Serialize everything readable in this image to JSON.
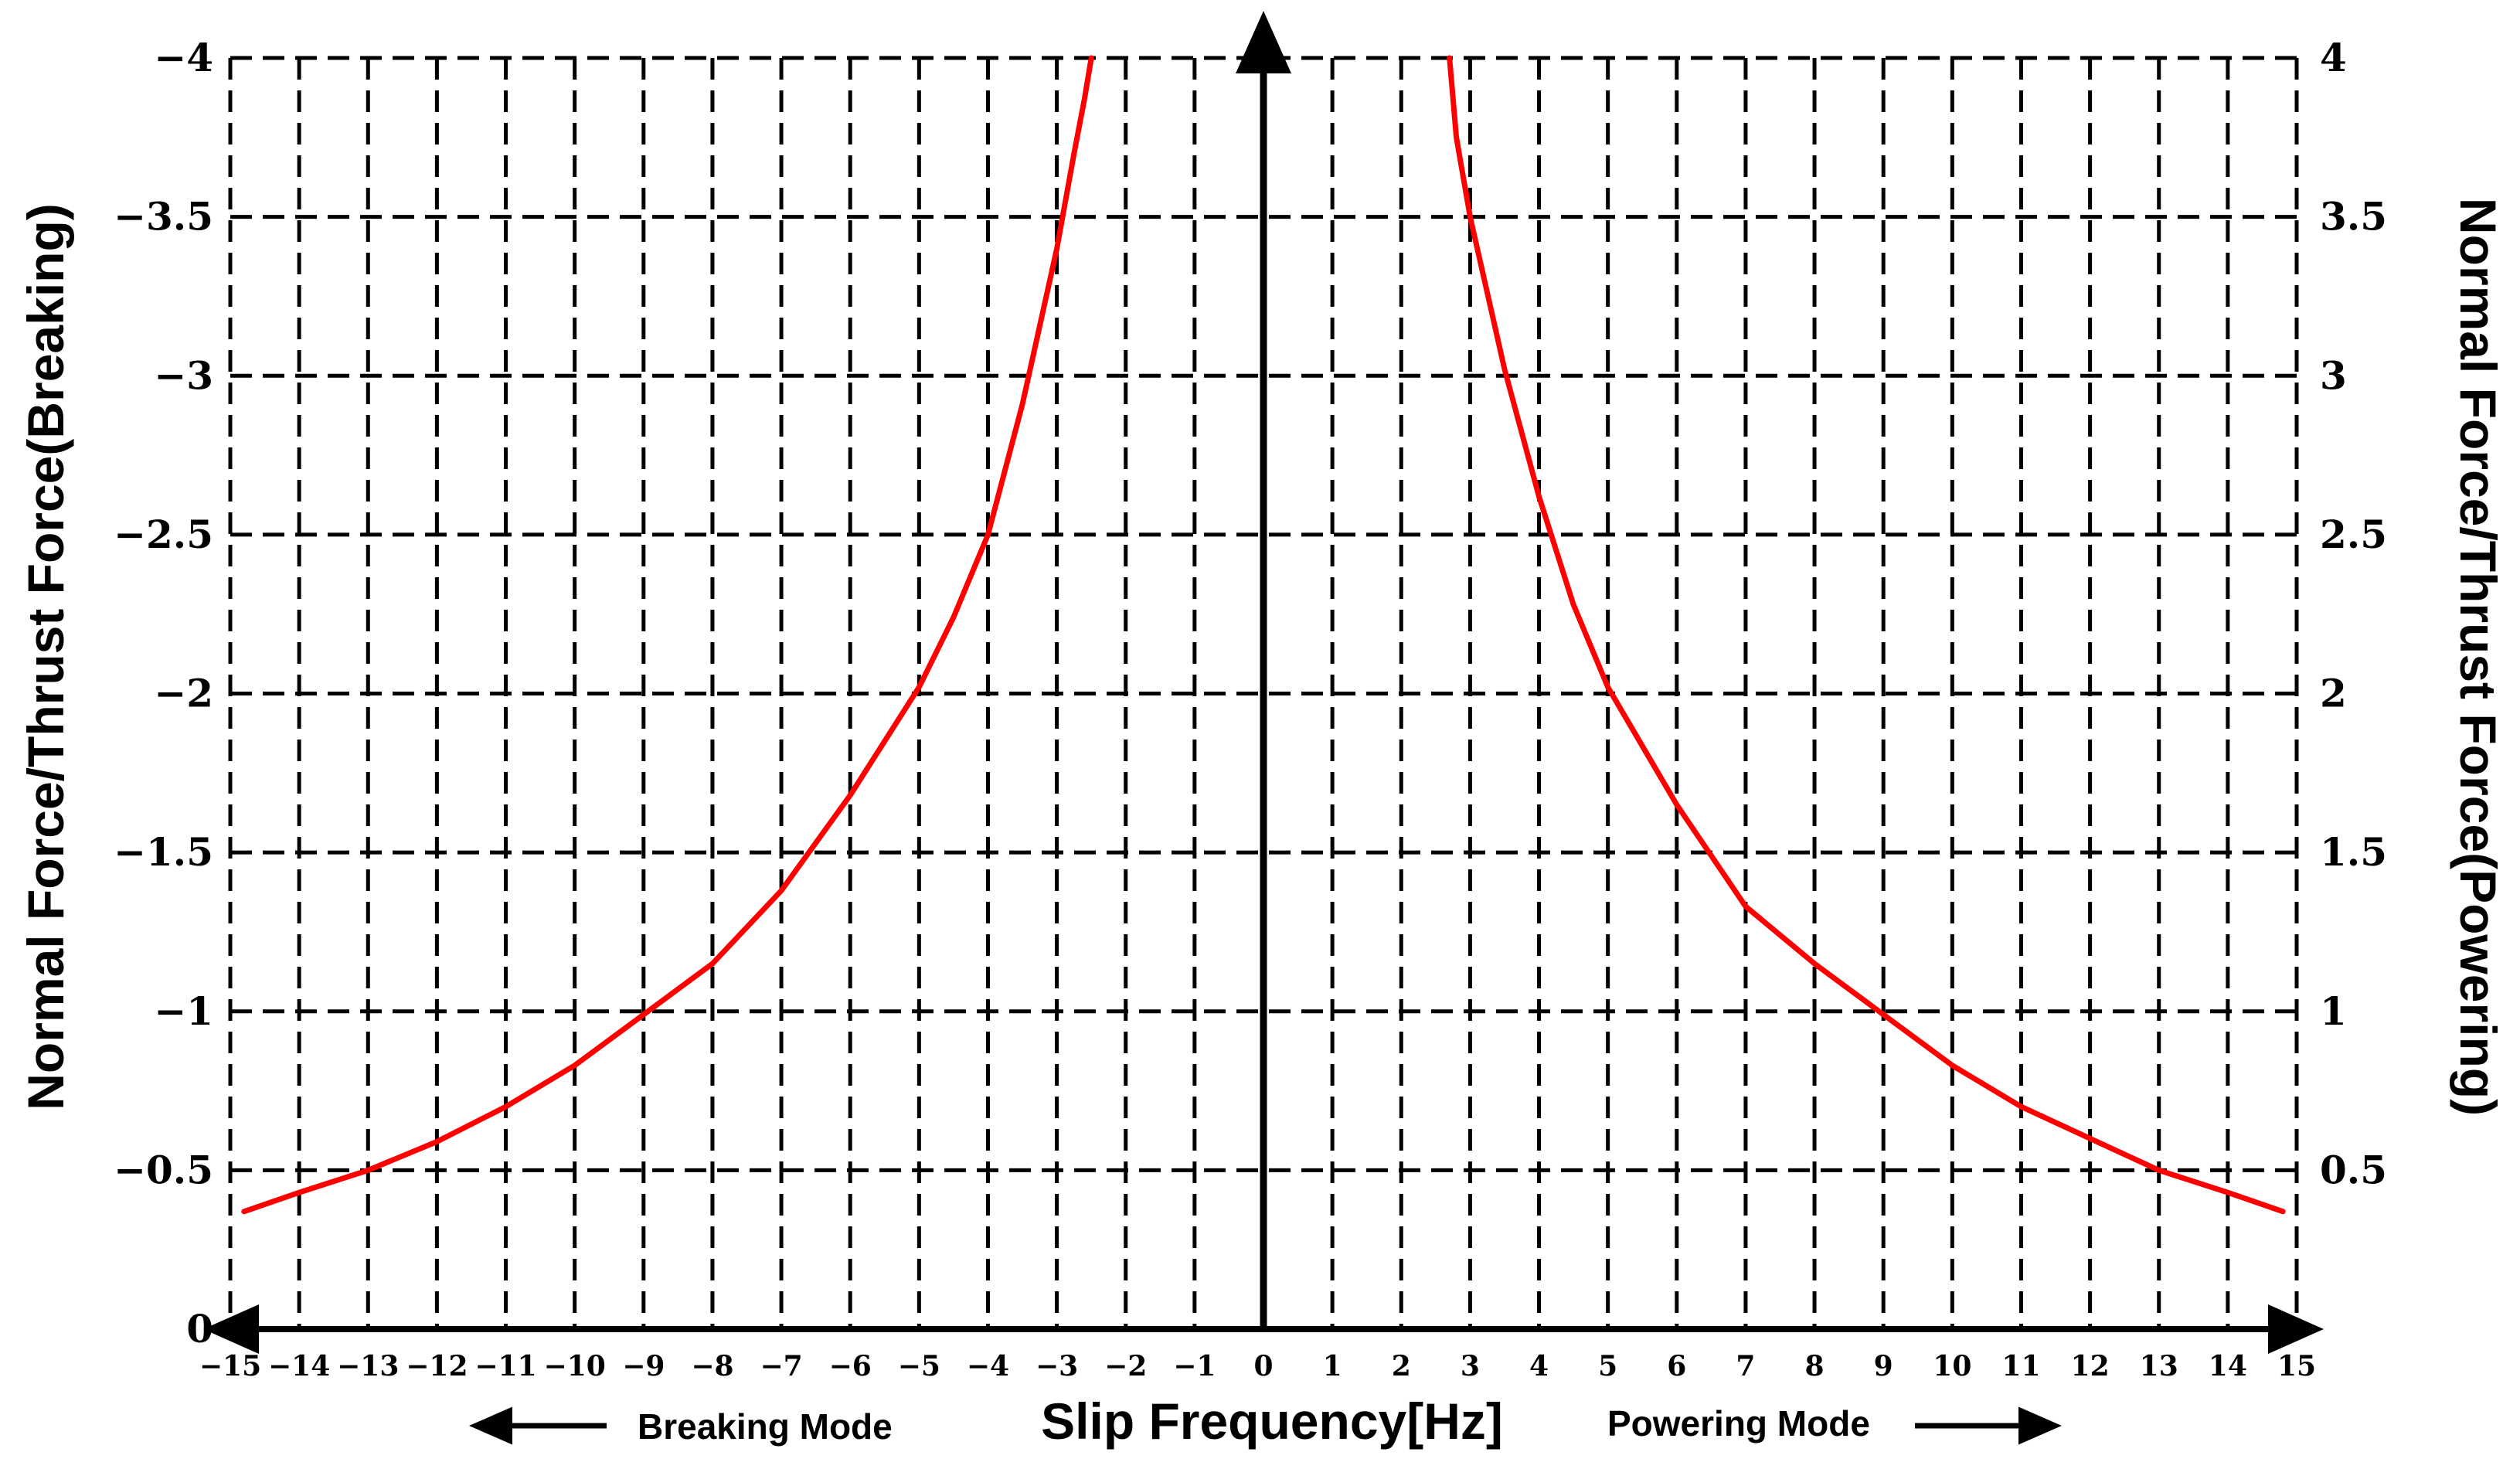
{
  "chart_data": {
    "type": "line",
    "xlabel": "Slip Frequency[Hz]",
    "ylabel_left": "Normal Force/Thrust Force(Breaking)",
    "ylabel_right": "Normal Force/Thrust Force(Powering)",
    "xlim": [
      -15,
      15
    ],
    "ylim": [
      0,
      4
    ],
    "x_ticks": [
      "−15",
      "−14",
      "−13",
      "−12",
      "−11",
      "−10",
      "−9",
      "−8",
      "−7",
      "−6",
      "−5",
      "−4",
      "−3",
      "−2",
      "−1",
      "0",
      "1",
      "2",
      "3",
      "4",
      "5",
      "6",
      "7",
      "8",
      "9",
      "10",
      "11",
      "12",
      "13",
      "14",
      "15"
    ],
    "y_ticks_left": [
      "0",
      "−0.5",
      "−1",
      "−1.5",
      "−2",
      "−2.5",
      "−3",
      "−3.5",
      "−4"
    ],
    "y_ticks_right": [
      "0.5",
      "1",
      "1.5",
      "2",
      "2.5",
      "3",
      "3.5",
      "4"
    ],
    "grid": "dashed",
    "mode_labels": {
      "left": "Breaking Mode",
      "right": "Powering Mode"
    },
    "series": [
      {
        "color": "#ff0000",
        "x": [
          -14.8,
          -14,
          -13,
          -12,
          -11,
          -10,
          -9,
          -8,
          -7,
          -6,
          -5,
          -4.5,
          -4,
          -3.5,
          -3,
          -2.75,
          -2.6,
          -2.5
        ],
        "y": [
          0.37,
          0.43,
          0.5,
          0.59,
          0.7,
          0.83,
          0.99,
          1.15,
          1.38,
          1.68,
          2.02,
          2.24,
          2.5,
          2.91,
          3.4,
          3.7,
          3.87,
          4.0
        ]
      },
      {
        "color": "#ff0000",
        "x": [
          2.7,
          2.8,
          3.0,
          3.5,
          4,
          4.5,
          5,
          6,
          7,
          8,
          9,
          10,
          11,
          12,
          13,
          14,
          14.8
        ],
        "y": [
          4.0,
          3.75,
          3.5,
          3.02,
          2.62,
          2.28,
          2.02,
          1.65,
          1.33,
          1.15,
          0.99,
          0.83,
          0.7,
          0.6,
          0.5,
          0.43,
          0.37
        ]
      }
    ]
  }
}
